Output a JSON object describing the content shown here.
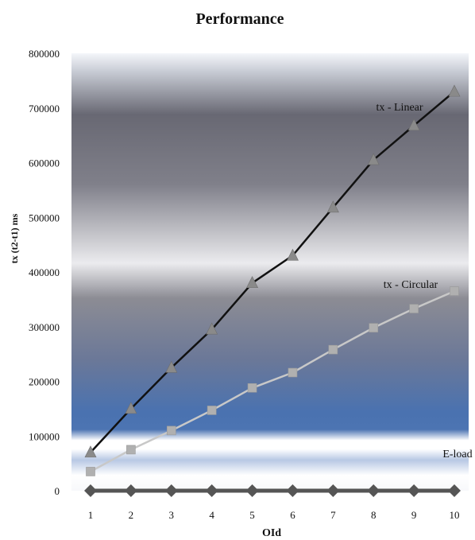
{
  "colors": {
    "linear": "#111111",
    "circular": "#c8c8c8",
    "eload": "#555555",
    "linear_marker": "#8a8a8a",
    "circular_marker": "#b0b0b0",
    "eload_marker": "#555555",
    "background_top": "#f2f4f8",
    "background_gray": "#707078",
    "background_blue": "#4a72b0"
  },
  "chart_data": {
    "type": "line",
    "title": "Performance",
    "xlabel": "OId",
    "ylabel": "tx (t2-t1) ms",
    "categories": [
      "1",
      "2",
      "3",
      "4",
      "5",
      "6",
      "7",
      "8",
      "9",
      "10"
    ],
    "ylim": [
      0,
      800000
    ],
    "yticks": [
      "0",
      "100000",
      "200000",
      "300000",
      "400000",
      "500000",
      "600000",
      "700000",
      "800000"
    ],
    "grid": false,
    "legend": "inline labels",
    "series": [
      {
        "name": "tx - Linear",
        "marker": "triangle",
        "values": [
          70000,
          150000,
          225000,
          295000,
          380000,
          430000,
          518000,
          605000,
          668000,
          730000
        ]
      },
      {
        "name": "tx - Circular",
        "marker": "square",
        "values": [
          35000,
          75000,
          110000,
          147000,
          188000,
          216000,
          258000,
          298000,
          333000,
          365000
        ]
      },
      {
        "name": "E-load",
        "marker": "diamond",
        "values": [
          0,
          0,
          0,
          0,
          0,
          0,
          0,
          0,
          0,
          0
        ]
      }
    ]
  }
}
